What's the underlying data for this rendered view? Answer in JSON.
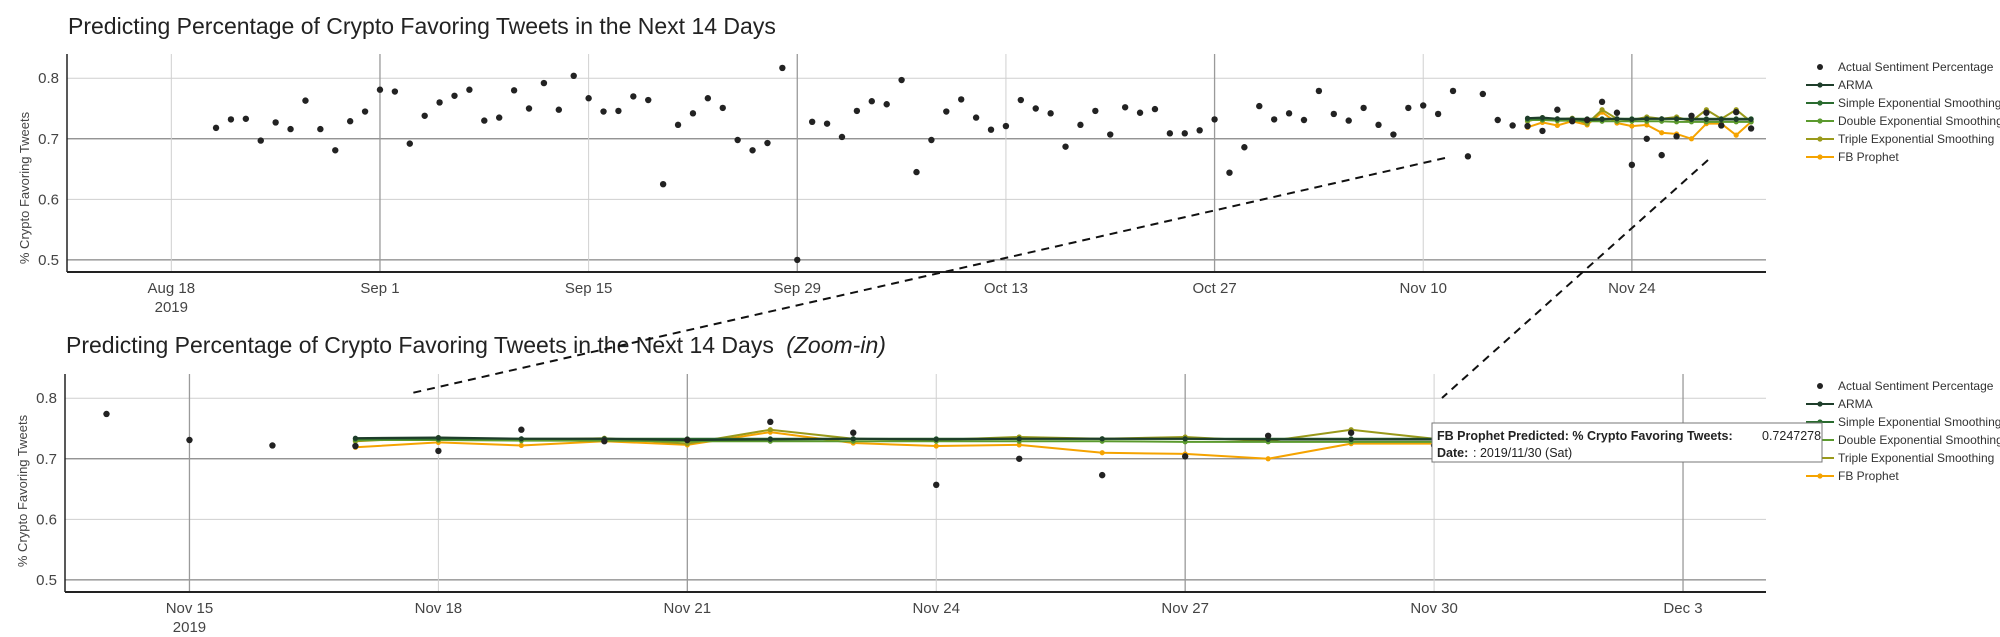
{
  "chart_data": [
    {
      "type": "line",
      "title": "Predicting Percentage of Crypto Favoring Tweets in the Next 14 Days",
      "title_suffix": "",
      "ylabel": "% Crypto Favoring Tweets",
      "xlabel": "",
      "ylim": [
        0.48,
        0.84
      ],
      "yticks": [
        0.5,
        0.6,
        0.7,
        0.8
      ],
      "xrange": [
        "2019-08-11",
        "2019-12-03"
      ],
      "xticks": [
        {
          "date": "2019-08-18",
          "label": "Aug 18",
          "sublabel": "2019"
        },
        {
          "date": "2019-09-01",
          "label": "Sep 1",
          "sublabel": ""
        },
        {
          "date": "2019-09-15",
          "label": "Sep 15",
          "sublabel": ""
        },
        {
          "date": "2019-09-29",
          "label": "Sep 29",
          "sublabel": ""
        },
        {
          "date": "2019-10-13",
          "label": "Oct 13",
          "sublabel": ""
        },
        {
          "date": "2019-10-27",
          "label": "Oct 27",
          "sublabel": ""
        },
        {
          "date": "2019-11-10",
          "label": "Nov 10",
          "sublabel": ""
        },
        {
          "date": "2019-11-24",
          "label": "Nov 24",
          "sublabel": ""
        }
      ],
      "grid": true,
      "legend": "right"
    },
    {
      "type": "line",
      "title": "Predicting Percentage of Crypto Favoring Tweets in the Next 14 Days",
      "title_suffix": "(Zoom-in)",
      "ylabel": "% Crypto Favoring Tweets",
      "xlabel": "",
      "ylim": [
        0.48,
        0.84
      ],
      "yticks": [
        0.5,
        0.6,
        0.7,
        0.8
      ],
      "xrange": [
        "2019-11-13 12:00",
        "2019-12-04"
      ],
      "xticks": [
        {
          "date": "2019-11-15",
          "label": "Nov 15",
          "sublabel": "2019"
        },
        {
          "date": "2019-11-18",
          "label": "Nov 18",
          "sublabel": ""
        },
        {
          "date": "2019-11-21",
          "label": "Nov 21",
          "sublabel": ""
        },
        {
          "date": "2019-11-24",
          "label": "Nov 24",
          "sublabel": ""
        },
        {
          "date": "2019-11-27",
          "label": "Nov 27",
          "sublabel": ""
        },
        {
          "date": "2019-11-30",
          "label": "Nov 30",
          "sublabel": ""
        },
        {
          "date": "2019-12-03",
          "label": "Dec 3",
          "sublabel": ""
        }
      ],
      "grid": true,
      "legend": "right",
      "tooltip": {
        "label": "FB Prophet Predicted: % Crypto Favoring Tweets:",
        "value": "0.7247278",
        "date_label": "Date:",
        "date_value": ": 2019/11/30 (Sat)"
      }
    }
  ],
  "legend": [
    {
      "name": "Actual Sentiment Percentage",
      "color": "#222222",
      "kind": "marker"
    },
    {
      "name": "ARMA",
      "color": "#1e3d2a",
      "kind": "line"
    },
    {
      "name": "Simple Exponential Smoothing",
      "color": "#2a6b2f",
      "kind": "line"
    },
    {
      "name": "Double Exponential Smoothing",
      "color": "#5b9a2e",
      "kind": "line"
    },
    {
      "name": "Triple Exponential Smoothing",
      "color": "#9a9a1a",
      "kind": "line"
    },
    {
      "name": "FB Prophet",
      "color": "#f5a300",
      "kind": "line"
    }
  ],
  "actual": [
    [
      "2019-08-21",
      0.718
    ],
    [
      "2019-08-22",
      0.732
    ],
    [
      "2019-08-23",
      0.733
    ],
    [
      "2019-08-24",
      0.697
    ],
    [
      "2019-08-25",
      0.727
    ],
    [
      "2019-08-26",
      0.716
    ],
    [
      "2019-08-27",
      0.763
    ],
    [
      "2019-08-28",
      0.716
    ],
    [
      "2019-08-29",
      0.681
    ],
    [
      "2019-08-30",
      0.729
    ],
    [
      "2019-08-31",
      0.745
    ],
    [
      "2019-09-01",
      0.781
    ],
    [
      "2019-09-02",
      0.778
    ],
    [
      "2019-09-03",
      0.692
    ],
    [
      "2019-09-04",
      0.738
    ],
    [
      "2019-09-05",
      0.76
    ],
    [
      "2019-09-06",
      0.771
    ],
    [
      "2019-09-07",
      0.781
    ],
    [
      "2019-09-08",
      0.73
    ],
    [
      "2019-09-09",
      0.735
    ],
    [
      "2019-09-10",
      0.78
    ],
    [
      "2019-09-11",
      0.75
    ],
    [
      "2019-09-12",
      0.792
    ],
    [
      "2019-09-13",
      0.748
    ],
    [
      "2019-09-14",
      0.804
    ],
    [
      "2019-09-15",
      0.767
    ],
    [
      "2019-09-16",
      0.745
    ],
    [
      "2019-09-17",
      0.746
    ],
    [
      "2019-09-18",
      0.77
    ],
    [
      "2019-09-19",
      0.764
    ],
    [
      "2019-09-20",
      0.625
    ],
    [
      "2019-09-21",
      0.723
    ],
    [
      "2019-09-22",
      0.742
    ],
    [
      "2019-09-23",
      0.767
    ],
    [
      "2019-09-24",
      0.751
    ],
    [
      "2019-09-25",
      0.698
    ],
    [
      "2019-09-26",
      0.681
    ],
    [
      "2019-09-27",
      0.693
    ],
    [
      "2019-09-28",
      0.817
    ],
    [
      "2019-09-29",
      0.5
    ],
    [
      "2019-09-30",
      0.728
    ],
    [
      "2019-10-01",
      0.725
    ],
    [
      "2019-10-02",
      0.703
    ],
    [
      "2019-10-03",
      0.746
    ],
    [
      "2019-10-04",
      0.762
    ],
    [
      "2019-10-05",
      0.757
    ],
    [
      "2019-10-06",
      0.797
    ],
    [
      "2019-10-07",
      0.645
    ],
    [
      "2019-10-08",
      0.698
    ],
    [
      "2019-10-09",
      0.745
    ],
    [
      "2019-10-10",
      0.765
    ],
    [
      "2019-10-11",
      0.735
    ],
    [
      "2019-10-12",
      0.715
    ],
    [
      "2019-10-13",
      0.721
    ],
    [
      "2019-10-14",
      0.764
    ],
    [
      "2019-10-15",
      0.75
    ],
    [
      "2019-10-16",
      0.742
    ],
    [
      "2019-10-17",
      0.687
    ],
    [
      "2019-10-18",
      0.723
    ],
    [
      "2019-10-19",
      0.746
    ],
    [
      "2019-10-20",
      0.707
    ],
    [
      "2019-10-21",
      0.752
    ],
    [
      "2019-10-22",
      0.743
    ],
    [
      "2019-10-23",
      0.749
    ],
    [
      "2019-10-24",
      0.709
    ],
    [
      "2019-10-25",
      0.709
    ],
    [
      "2019-10-26",
      0.714
    ],
    [
      "2019-10-27",
      0.732
    ],
    [
      "2019-10-28",
      0.644
    ],
    [
      "2019-10-29",
      0.686
    ],
    [
      "2019-10-30",
      0.754
    ],
    [
      "2019-10-31",
      0.732
    ],
    [
      "2019-11-01",
      0.742
    ],
    [
      "2019-11-02",
      0.731
    ],
    [
      "2019-11-03",
      0.779
    ],
    [
      "2019-11-04",
      0.741
    ],
    [
      "2019-11-05",
      0.73
    ],
    [
      "2019-11-06",
      0.751
    ],
    [
      "2019-11-07",
      0.723
    ],
    [
      "2019-11-08",
      0.707
    ],
    [
      "2019-11-09",
      0.751
    ],
    [
      "2019-11-10",
      0.755
    ],
    [
      "2019-11-11",
      0.741
    ],
    [
      "2019-11-12",
      0.779
    ],
    [
      "2019-11-13",
      0.671
    ],
    [
      "2019-11-14",
      0.774
    ],
    [
      "2019-11-15",
      0.731
    ],
    [
      "2019-11-16",
      0.722
    ],
    [
      "2019-11-17",
      0.721
    ],
    [
      "2019-11-18",
      0.713
    ],
    [
      "2019-11-19",
      0.748
    ],
    [
      "2019-11-20",
      0.729
    ],
    [
      "2019-11-21",
      0.731
    ],
    [
      "2019-11-22",
      0.761
    ],
    [
      "2019-11-23",
      0.743
    ],
    [
      "2019-11-24",
      0.657
    ],
    [
      "2019-11-25",
      0.7
    ],
    [
      "2019-11-26",
      0.673
    ],
    [
      "2019-11-27",
      0.704
    ],
    [
      "2019-11-28",
      0.738
    ],
    [
      "2019-11-29",
      0.743
    ],
    [
      "2019-11-30",
      0.722
    ],
    [
      "2019-12-01",
      0.744
    ],
    [
      "2019-12-02",
      0.717
    ]
  ],
  "forecast_dates": [
    "2019-11-17",
    "2019-11-18",
    "2019-11-19",
    "2019-11-20",
    "2019-11-21",
    "2019-11-22",
    "2019-11-23",
    "2019-11-24",
    "2019-11-25",
    "2019-11-26",
    "2019-11-27",
    "2019-11-28",
    "2019-11-29",
    "2019-11-30",
    "2019-12-01",
    "2019-12-02"
  ],
  "forecasts": [
    {
      "name": "ARMA",
      "values": [
        0.734,
        0.735,
        0.733,
        0.733,
        0.731,
        0.732,
        0.733,
        0.732,
        0.733,
        0.733,
        0.733,
        0.732,
        0.732,
        0.732,
        0.732,
        0.732
      ]
    },
    {
      "name": "Simple Exponential Smoothing",
      "values": [
        0.733,
        0.733,
        0.733,
        0.733,
        0.733,
        0.733,
        0.733,
        0.733,
        0.733,
        0.733,
        0.733,
        0.733,
        0.733,
        0.733,
        0.733,
        0.733
      ]
    },
    {
      "name": "Double Exponential Smoothing",
      "values": [
        0.731,
        0.731,
        0.73,
        0.73,
        0.729,
        0.729,
        0.729,
        0.729,
        0.729,
        0.729,
        0.728,
        0.728,
        0.728,
        0.728,
        0.728,
        0.728
      ]
    },
    {
      "name": "Triple Exponential Smoothing",
      "values": [
        0.729,
        0.735,
        0.731,
        0.734,
        0.725,
        0.748,
        0.733,
        0.731,
        0.736,
        0.733,
        0.736,
        0.729,
        0.748,
        0.733,
        0.748,
        0.728
      ]
    },
    {
      "name": "FB Prophet",
      "values": [
        0.719,
        0.727,
        0.722,
        0.729,
        0.723,
        0.744,
        0.726,
        0.721,
        0.723,
        0.71,
        0.708,
        0.7,
        0.725,
        0.725,
        0.706,
        0.728
      ]
    }
  ]
}
